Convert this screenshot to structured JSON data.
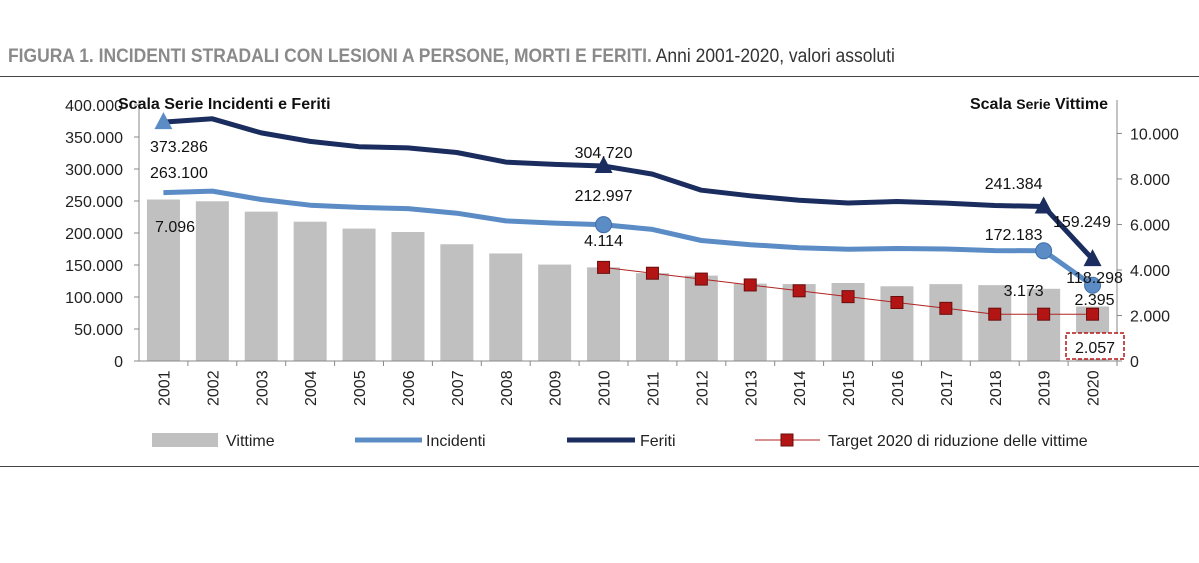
{
  "figure": {
    "title_bold": "FIGURA 1. INCIDENTI STRADALI CON LESIONI A PERSONE, MORTI E FERITI.",
    "title_rest": " Anni 2001-2020, valori assoluti"
  },
  "colors": {
    "bars": "#c0c0c0",
    "incidenti": "#5b8cc6",
    "feriti": "#1a2d5e",
    "target": "#b22222",
    "target_marker": "#b31515"
  },
  "chart_data": {
    "type": "bar",
    "x": [
      "2001",
      "2002",
      "2003",
      "2004",
      "2005",
      "2006",
      "2007",
      "2008",
      "2009",
      "2010",
      "2011",
      "2012",
      "2013",
      "2014",
      "2015",
      "2016",
      "2017",
      "2018",
      "2019",
      "2020"
    ],
    "series": [
      {
        "name": "Vittime",
        "type": "bar",
        "axis": "right",
        "values": [
          7096,
          7020,
          6563,
          6122,
          5818,
          5669,
          5131,
          4725,
          4237,
          4114,
          3860,
          3753,
          3401,
          3381,
          3428,
          3283,
          3378,
          3334,
          3173,
          2395
        ]
      },
      {
        "name": "Incidenti",
        "type": "line",
        "axis": "left",
        "values": [
          263100,
          265402,
          252271,
          243490,
          240011,
          238124,
          230871,
          218963,
          215405,
          212997,
          205638,
          188228,
          181660,
          177031,
          174539,
          175791,
          174933,
          172553,
          172183,
          118298
        ]
      },
      {
        "name": "Feriti",
        "type": "line",
        "axis": "left",
        "values": [
          373286,
          378492,
          356475,
          343179,
          334858,
          332955,
          325850,
          310745,
          307258,
          304720,
          292019,
          266864,
          258093,
          251147,
          246920,
          249175,
          246750,
          242919,
          241384,
          159249
        ]
      },
      {
        "name": "Target 2020 di riduzione delle vittime",
        "type": "line",
        "axis": "right",
        "x": [
          "2010",
          "2011",
          "2012",
          "2013",
          "2014",
          "2015",
          "2016",
          "2017",
          "2018",
          "2019",
          "2020"
        ],
        "values": [
          4114,
          3857,
          3600,
          3342,
          3085,
          2828,
          2571,
          2314,
          2057,
          2057,
          2057
        ]
      }
    ],
    "left_axis": {
      "title": "Scala Serie Incidenti e Feriti",
      "min": 0,
      "max": 400000,
      "ticks": [
        "0",
        "50.000",
        "100.000",
        "150.000",
        "200.000",
        "250.000",
        "300.000",
        "350.000",
        "400.000"
      ]
    },
    "right_axis": {
      "title_bold": "Scala ",
      "title_small": "Serie",
      "title_bold_end": " Vittime",
      "min": 0,
      "max": 11250,
      "ticks": [
        "0",
        "2.000",
        "4.000",
        "6.000",
        "8.000",
        "10.000"
      ]
    },
    "labels": {
      "feriti_2001": "373.286",
      "incidenti_2001": "263.100",
      "vittime_2001": "7.096",
      "feriti_2010": "304.720",
      "incidenti_2010": "212.997",
      "vittime_2010": "4.114",
      "feriti_2019": "241.384",
      "incidenti_2019": "172.183",
      "vittime_2019": "3.173",
      "feriti_2020": "159.249",
      "incidenti_2020": "118.298",
      "vittime_2020": "2.395",
      "target_2020": "2.057"
    },
    "legend": [
      "Vittime",
      "Incidenti",
      "Feriti",
      "Target 2020 di riduzione delle vittime"
    ],
    "legend_position": "bottom",
    "grid": false
  }
}
